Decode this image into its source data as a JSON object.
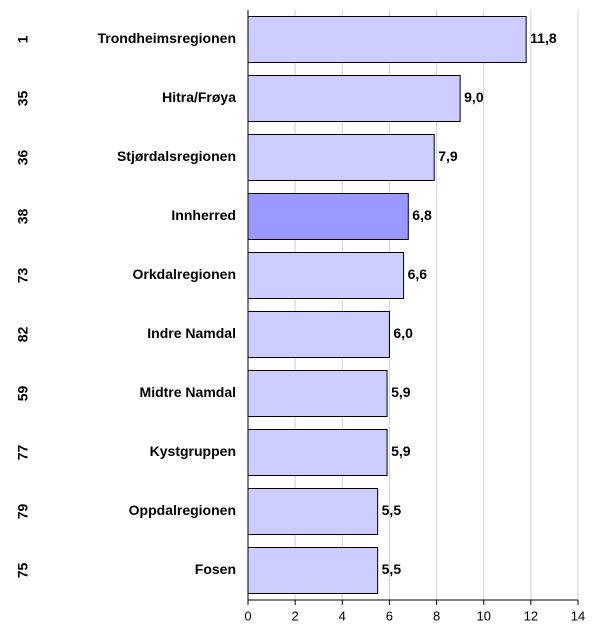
{
  "chart_data": {
    "type": "bar",
    "orientation": "horizontal",
    "ranks": [
      "1",
      "35",
      "36",
      "38",
      "73",
      "82",
      "59",
      "77",
      "79",
      "75"
    ],
    "categories": [
      "Trondheimsregionen",
      "Hitra/Frøya",
      "Stjørdalsregionen",
      "Innherred",
      "Orkdalregionen",
      "Indre Namdal",
      "Midtre Namdal",
      "Kystgruppen",
      "Oppdalregionen",
      "Fosen"
    ],
    "values": [
      11.8,
      9.0,
      7.9,
      6.8,
      6.6,
      6.0,
      5.9,
      5.9,
      5.5,
      5.5
    ],
    "value_labels": [
      "11,8",
      "9,0",
      "7,9",
      "6,8",
      "6,6",
      "6,0",
      "5,9",
      "5,9",
      "5,5",
      "5,5"
    ],
    "colors": [
      "#ccccff",
      "#ccccff",
      "#ccccff",
      "#9999ff",
      "#ccccff",
      "#ccccff",
      "#ccccff",
      "#ccccff",
      "#ccccff",
      "#ccccff"
    ],
    "xlim": [
      0,
      14
    ],
    "xticks": [
      0,
      2,
      4,
      6,
      8,
      10,
      12,
      14
    ],
    "grid": true
  }
}
